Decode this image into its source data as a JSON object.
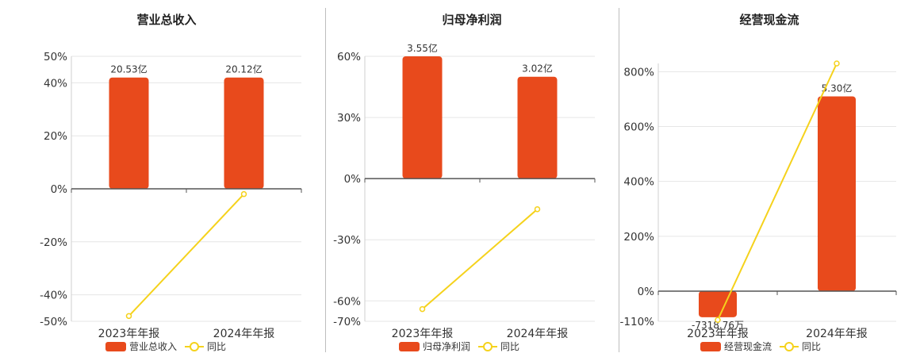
{
  "colors": {
    "bar": "#e84a1c",
    "line": "#f5d21c",
    "grid": "#e6e6e6",
    "axis": "#555555"
  },
  "chart_data": [
    {
      "type": "bar+line",
      "title": "营业总收入",
      "categories": [
        "2023年年报",
        "2024年年报"
      ],
      "bar_series": {
        "name": "营业总收入",
        "values": [
          42,
          42
        ],
        "labels": [
          "20.53亿",
          "20.12亿"
        ]
      },
      "line_series": {
        "name": "同比",
        "values": [
          -48,
          -2
        ]
      },
      "ylim": [
        -50,
        50
      ],
      "yticks": [
        -50,
        -40,
        -20,
        0,
        20,
        40,
        50
      ],
      "ytick_labels": [
        "-50%",
        "-40%",
        "-20%",
        "0%",
        "20%",
        "40%",
        "50%"
      ],
      "grid": true,
      "legend": "bottom"
    },
    {
      "type": "bar+line",
      "title": "归母净利润",
      "categories": [
        "2023年年报",
        "2024年年报"
      ],
      "bar_series": {
        "name": "归母净利润",
        "values": [
          60,
          50
        ],
        "labels": [
          "3.55亿",
          "3.02亿"
        ]
      },
      "line_series": {
        "name": "同比",
        "values": [
          -64,
          -15
        ]
      },
      "ylim": [
        -70,
        60
      ],
      "yticks": [
        -70,
        -60,
        -30,
        0,
        30,
        60
      ],
      "ytick_labels": [
        "-70%",
        "-60%",
        "-30%",
        "0%",
        "30%",
        "60%"
      ],
      "grid": true,
      "legend": "bottom"
    },
    {
      "type": "bar+line",
      "title": "经营现金流",
      "categories": [
        "2023年年报",
        "2024年年报"
      ],
      "bar_series": {
        "name": "经营现金流",
        "values": [
          -95,
          710
        ],
        "labels": [
          "-7318.76万",
          "5.30亿"
        ]
      },
      "line_series": {
        "name": "同比",
        "values": [
          -105,
          830
        ]
      },
      "ylim": [
        -110,
        830
      ],
      "yticks": [
        -110,
        0,
        200,
        400,
        600,
        800
      ],
      "ytick_labels": [
        "-110%",
        "0%",
        "200%",
        "400%",
        "600%",
        "800%"
      ],
      "grid": true,
      "legend": "bottom"
    }
  ],
  "legend_line_label": "同比"
}
